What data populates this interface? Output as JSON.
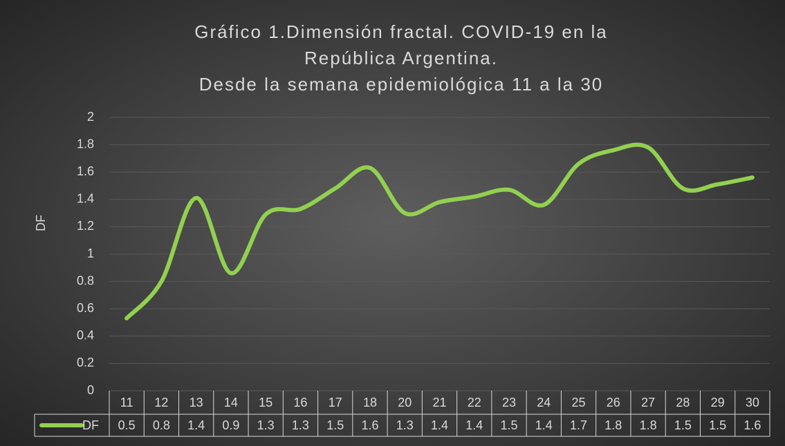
{
  "chart_data": {
    "type": "line",
    "title": [
      "Gráfico 1.Dimensión fractal.  COVID-19 en la",
      "República  Argentina.",
      "Desde la semana epidemiológica 11 a la 30"
    ],
    "y_label": "DF",
    "categories": [
      "11",
      "12",
      "13",
      "14",
      "15",
      "16",
      "17",
      "18",
      "20",
      "21",
      "22",
      "23",
      "24",
      "25",
      "26",
      "27",
      "28",
      "29",
      "30"
    ],
    "series": [
      {
        "name": "DF",
        "color": "#92d050",
        "values": [
          0.53,
          0.8,
          1.41,
          0.86,
          1.29,
          1.33,
          1.48,
          1.63,
          1.3,
          1.38,
          1.42,
          1.47,
          1.36,
          1.66,
          1.76,
          1.78,
          1.48,
          1.51,
          1.56
        ],
        "value_labels": [
          "0.5",
          "0.8",
          "1.4",
          "0.9",
          "1.3",
          "1.3",
          "1.5",
          "1.6",
          "1.3",
          "1.4",
          "1.4",
          "1.5",
          "1.4",
          "1.7",
          "1.8",
          "1.8",
          "1.5",
          "1.5",
          "1.6"
        ]
      }
    ],
    "ylim": [
      0,
      2
    ],
    "yticks": [
      0,
      0.2,
      0.4,
      0.6,
      0.8,
      1,
      1.2,
      1.4,
      1.6,
      1.8,
      2
    ],
    "grid": true,
    "smooth": true
  }
}
